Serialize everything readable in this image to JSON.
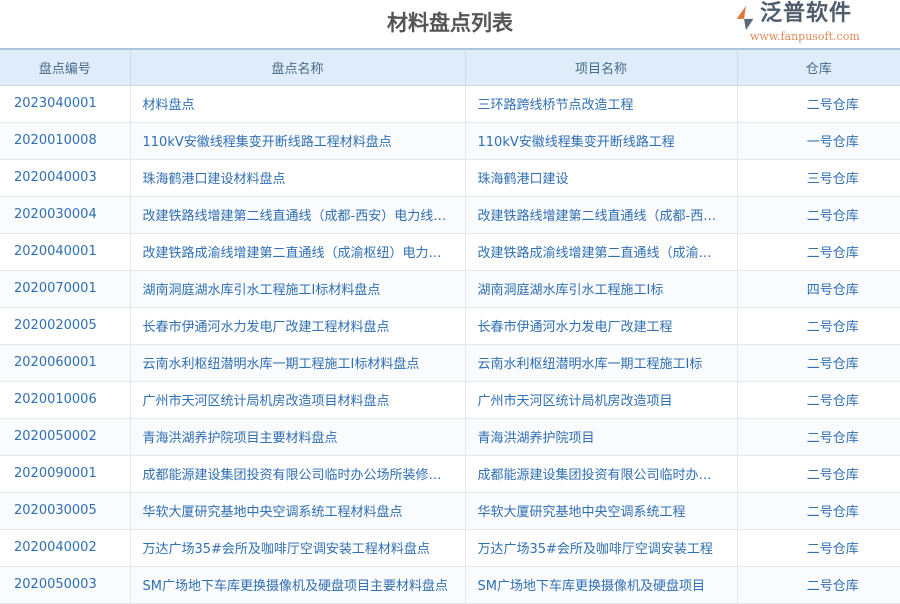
{
  "title": "材料盘点列表",
  "columns": [
    "盘点编号",
    "盘点名称",
    "项目名称",
    "仓库"
  ],
  "rows": [
    [
      "2023040001",
      "材料盘点",
      "三环路跨线桥节点改造工程",
      "二号仓库"
    ],
    [
      "2020010008",
      "110kV安徽线程集变开断线路工程材料盘点",
      "110kV安徽线程集变开断线路工程",
      "一号仓库"
    ],
    [
      "2020040003",
      "珠海鹤港口建设材料盘点",
      "珠海鹤港口建设",
      "三号仓库"
    ],
    [
      "2020030004",
      "改建铁路线增建第二线直通线（成都-西安）电力线迁改工程材料盘点",
      "改建铁路线增建第二线直通线（成都-西安）电力线迁改工程",
      "二号仓库"
    ],
    [
      "2020040001",
      "改建铁路成渝线增建第二直通线（成渝枢纽）电力线迁改工程材料盘点",
      "改建铁路成渝线增建第二直通线（成渝枢纽）电力线迁改工程",
      "二号仓库"
    ],
    [
      "2020070001",
      "湖南洞庭湖水库引水工程施工I标材料盘点",
      "湖南洞庭湖水库引水工程施工I标",
      "四号仓库"
    ],
    [
      "2020020005",
      "长春市伊通河水力发电厂改建工程材料盘点",
      "长春市伊通河水力发电厂改建工程",
      "二号仓库"
    ],
    [
      "2020060001",
      "云南水利枢纽潜明水库一期工程施工I标材料盘点",
      "云南水利枢纽潜明水库一期工程施工I标",
      "二号仓库"
    ],
    [
      "2020010006",
      "广州市天河区统计局机房改造项目材料盘点",
      "广州市天河区统计局机房改造项目",
      "二号仓库"
    ],
    [
      "2020050002",
      "青海洪湖养护院项目主要材料盘点",
      "青海洪湖养护院项目",
      "二号仓库"
    ],
    [
      "2020090001",
      "成都能源建设集团投资有限公司临时办公场所装修改造工程材料盘点",
      "成都能源建设集团投资有限公司临时办公场所装修改造工程",
      "二号仓库"
    ],
    [
      "2020030005",
      "华软大厦研究基地中央空调系统工程材料盘点",
      "华软大厦研究基地中央空调系统工程",
      "二号仓库"
    ],
    [
      "2020040002",
      "万达广场35#会所及咖啡厅空调安装工程材料盘点",
      "万达广场35#会所及咖啡厅空调安装工程",
      "二号仓库"
    ],
    [
      "2020050003",
      "SM广场地下车库更换摄像机及硬盘项目主要材料盘点",
      "SM广场地下车库更换摄像机及硬盘项目",
      "二号仓库"
    ]
  ],
  "watermark": {
    "name": "泛普软件",
    "url": "www.fanpusoft.com"
  },
  "colors": {
    "header_bg": "#deedf9",
    "link": "#2f6fb3"
  }
}
